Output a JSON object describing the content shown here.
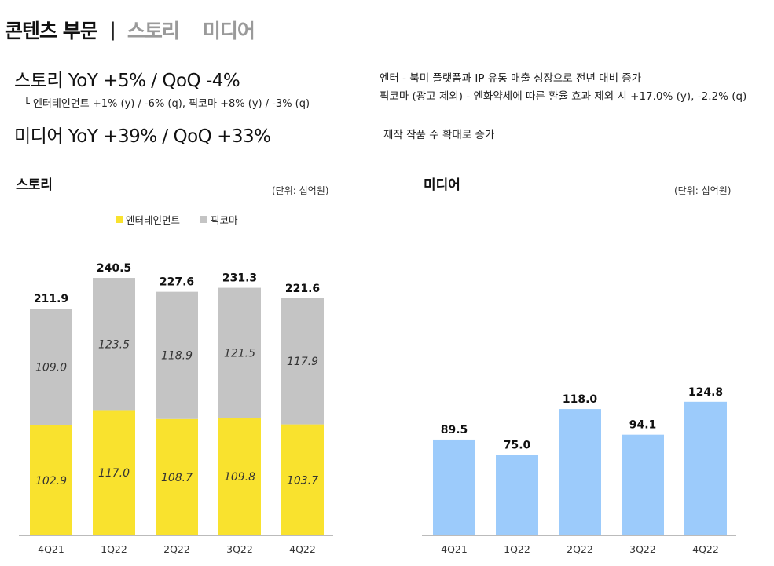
{
  "header": {
    "title": "콘텐츠 부문",
    "separator": "|",
    "tabs": [
      "스토리",
      "미디어"
    ]
  },
  "summary": {
    "story_line": "스토리  YoY +5% / QoQ -4%",
    "story_sub": "└ 엔터테인먼트 +1% (y) / -6% (q),   픽코마 +8% (y) / -3% (q)",
    "media_line": "미디어 YoY +39% / QoQ +33%",
    "notes": [
      "엔터 - 북미 플랫폼과 IP 유통 매출 성장으로 전년 대비 증가",
      "픽코마 (광고 제외) - 엔화약세에 따른 환율 효과 제외 시 +17.0% (y), -2.2% (q)",
      "제작 작품 수 확대로 증가"
    ]
  },
  "colors": {
    "entertainment": "#f9e22e",
    "piccoma": "#c4c4c4",
    "media": "#9ccbfb",
    "axis": "#bbbbbb"
  },
  "chart_data": [
    {
      "type": "bar",
      "stacked": true,
      "title": "스토리",
      "unit": "(단위: 십억원)",
      "categories": [
        "4Q21",
        "1Q22",
        "2Q22",
        "3Q22",
        "4Q22"
      ],
      "series": [
        {
          "name": "엔터테인먼트",
          "values": [
            102.9,
            117.0,
            108.7,
            109.8,
            103.7
          ]
        },
        {
          "name": "픽코마",
          "values": [
            109.0,
            123.5,
            118.9,
            121.5,
            117.9
          ]
        }
      ],
      "totals": [
        211.9,
        240.5,
        227.6,
        231.3,
        221.6
      ],
      "legend": "top-left",
      "ylim": [
        0,
        275
      ],
      "grid": false
    },
    {
      "type": "bar",
      "title": "미디어",
      "unit": "(단위: 십억원)",
      "categories": [
        "4Q21",
        "1Q22",
        "2Q22",
        "3Q22",
        "4Q22"
      ],
      "values": [
        89.5,
        75.0,
        118.0,
        94.1,
        124.8
      ],
      "ylim": [
        0,
        275
      ],
      "grid": false
    }
  ]
}
